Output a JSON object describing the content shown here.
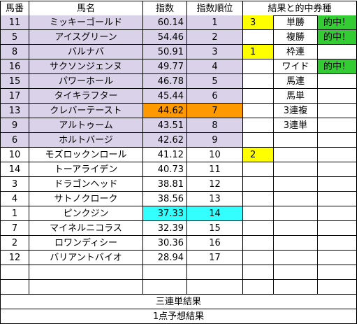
{
  "headers": {
    "number": "馬番",
    "name": "馬名",
    "index": "指数",
    "rank": "指数順位",
    "result_ticket": "結果と的中券種"
  },
  "horses": [
    {
      "number": "11",
      "name": "ミッキーゴールド",
      "index": "60.14",
      "rank": "1",
      "highlight": "lavender"
    },
    {
      "number": "5",
      "name": "アイスグリーン",
      "index": "54.46",
      "rank": "2",
      "highlight": "lavender"
    },
    {
      "number": "8",
      "name": "バルナバ",
      "index": "50.91",
      "rank": "3",
      "highlight": "lavender"
    },
    {
      "number": "16",
      "name": "サクソンジェンヌ",
      "index": "49.77",
      "rank": "4",
      "highlight": "lavender"
    },
    {
      "number": "15",
      "name": "パワーホール",
      "index": "46.78",
      "rank": "5",
      "highlight": "lavender"
    },
    {
      "number": "17",
      "name": "タイキラフター",
      "index": "45.44",
      "rank": "6",
      "highlight": "lavender"
    },
    {
      "number": "13",
      "name": "クレバーテースト",
      "index": "44.62",
      "rank": "7",
      "highlight": "lavender",
      "value_highlight": "orange"
    },
    {
      "number": "9",
      "name": "アルトゥーム",
      "index": "43.51",
      "rank": "8",
      "highlight": "lavender"
    },
    {
      "number": "6",
      "name": "ホルトバージ",
      "index": "42.62",
      "rank": "9",
      "highlight": "lavender"
    },
    {
      "number": "10",
      "name": "モズロックンロール",
      "index": "41.12",
      "rank": "10",
      "highlight": "none"
    },
    {
      "number": "14",
      "name": "トーアライデン",
      "index": "40.73",
      "rank": "11",
      "highlight": "none"
    },
    {
      "number": "3",
      "name": "ドラゴンヘッド",
      "index": "38.81",
      "rank": "12",
      "highlight": "none"
    },
    {
      "number": "4",
      "name": "サトノクローク",
      "index": "38.56",
      "rank": "13",
      "highlight": "none"
    },
    {
      "number": "1",
      "name": "ピンクジン",
      "index": "37.33",
      "rank": "14",
      "highlight": "none",
      "value_highlight": "cyan"
    },
    {
      "number": "7",
      "name": "マイネルニコラス",
      "index": "32.39",
      "rank": "15",
      "highlight": "none"
    },
    {
      "number": "2",
      "name": "ロワンディシー",
      "index": "30.36",
      "rank": "16",
      "highlight": "none"
    },
    {
      "number": "12",
      "name": "バリアントバイオ",
      "index": "28.94",
      "rank": "17",
      "highlight": "none"
    }
  ],
  "results": [
    {
      "place": "3",
      "ticket": "単勝",
      "hit": "的中！"
    },
    {
      "place": "",
      "ticket": "複勝",
      "hit": "的中！"
    },
    {
      "place": "1",
      "ticket": "枠連",
      "hit": ""
    },
    {
      "place": "",
      "ticket": "ワイド",
      "hit": "的中！"
    },
    {
      "place": "",
      "ticket": "馬連",
      "hit": ""
    },
    {
      "place": "",
      "ticket": "馬単",
      "hit": ""
    },
    {
      "place": "",
      "ticket": "3連複",
      "hit": ""
    },
    {
      "place": "",
      "ticket": "3連単",
      "hit": ""
    },
    {
      "place": "",
      "ticket": "",
      "hit": ""
    },
    {
      "place": "2",
      "ticket": "",
      "hit": ""
    }
  ],
  "footer": {
    "trifecta_result": "三連単結果",
    "one_point_prediction": "1点予想結果"
  },
  "colors": {
    "lavender": "#d9d2e9",
    "orange": "#ff9900",
    "cyan": "#33ffff",
    "yellow": "#ffff00",
    "green": "#33cc33"
  }
}
